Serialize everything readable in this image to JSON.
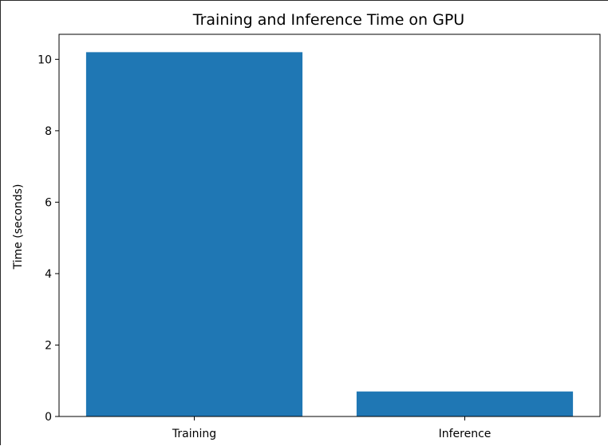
{
  "chart_data": {
    "type": "bar",
    "title": "Training and Inference Time on GPU",
    "xlabel": "",
    "ylabel": "Time (seconds)",
    "categories": [
      "Training",
      "Inference"
    ],
    "values": [
      10.2,
      0.7
    ],
    "ylim": [
      0,
      10.7
    ],
    "yticks": [
      0,
      2,
      4,
      6,
      8,
      10
    ],
    "grid": false,
    "bar_color": "#1f77b4"
  }
}
